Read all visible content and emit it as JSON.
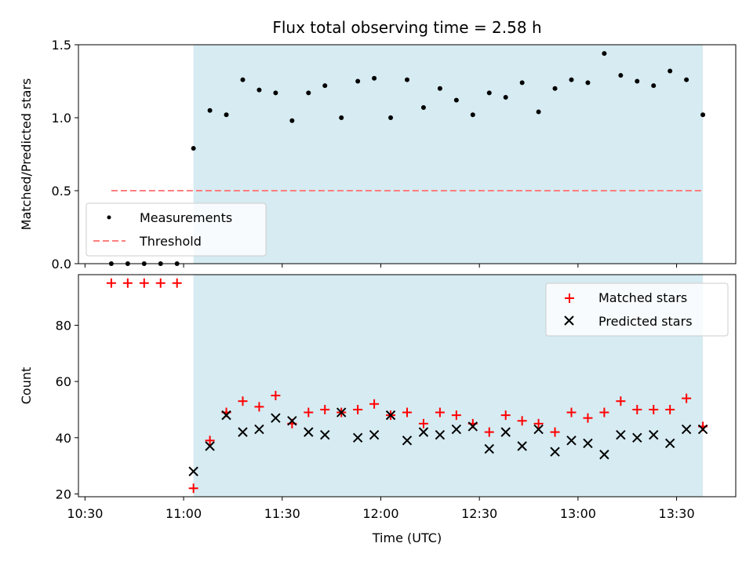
{
  "chart_data": {
    "type": "scatter",
    "title": "Flux total observing time = 2.58 h",
    "xlabel": "Time (UTC)",
    "x_ticks": [
      "10:30",
      "11:00",
      "11:30",
      "12:00",
      "12:30",
      "13:00",
      "13:30"
    ],
    "x_range": [
      "10:28",
      "13:48"
    ],
    "highlight_span": {
      "start": "11:03",
      "end": "13:38",
      "color": "#add8e6"
    },
    "panels": [
      {
        "ylabel": "Matched/Predicted stars",
        "ylim": [
          0,
          1.5
        ],
        "y_ticks": [
          0.0,
          0.5,
          1.0,
          1.5
        ],
        "legend": {
          "placement": "lower-left",
          "entries": [
            "Measurements",
            "Threshold"
          ]
        },
        "series": [
          {
            "name": "Measurements",
            "marker": "dot",
            "color": "#000000",
            "x": [
              "10:38",
              "10:43",
              "10:48",
              "10:53",
              "10:58",
              "11:03",
              "11:08",
              "11:13",
              "11:18",
              "11:23",
              "11:28",
              "11:33",
              "11:38",
              "11:43",
              "11:48",
              "11:53",
              "11:58",
              "12:03",
              "12:08",
              "12:13",
              "12:18",
              "12:23",
              "12:28",
              "12:33",
              "12:38",
              "12:43",
              "12:48",
              "12:53",
              "12:58",
              "13:03",
              "13:08",
              "13:13",
              "13:18",
              "13:23",
              "13:28",
              "13:33",
              "13:38"
            ],
            "y": [
              0,
              0,
              0,
              0,
              0,
              0.79,
              1.05,
              1.02,
              1.26,
              1.19,
              1.17,
              0.98,
              1.17,
              1.22,
              1.0,
              1.25,
              1.27,
              1.0,
              1.26,
              1.07,
              1.2,
              1.12,
              1.02,
              1.17,
              1.14,
              1.24,
              1.04,
              1.2,
              1.26,
              1.24,
              1.44,
              1.29,
              1.25,
              1.22,
              1.32,
              1.26,
              1.02
            ]
          },
          {
            "name": "Threshold",
            "marker": "dashed-line",
            "color": "#ff7f7f",
            "x": [
              "10:38",
              "13:38"
            ],
            "y": [
              0.5,
              0.5
            ]
          }
        ]
      },
      {
        "ylabel": "Count",
        "ylim": [
          19,
          98
        ],
        "y_ticks": [
          20,
          40,
          60,
          80
        ],
        "legend": {
          "placement": "upper-right",
          "entries": [
            "Matched stars",
            "Predicted stars"
          ]
        },
        "series": [
          {
            "name": "Matched stars",
            "marker": "plus",
            "color": "#ff0000",
            "x": [
              "10:38",
              "10:43",
              "10:48",
              "10:53",
              "10:58",
              "11:03",
              "11:08",
              "11:13",
              "11:18",
              "11:23",
              "11:28",
              "11:33",
              "11:38",
              "11:43",
              "11:48",
              "11:53",
              "11:58",
              "12:03",
              "12:08",
              "12:13",
              "12:18",
              "12:23",
              "12:28",
              "12:33",
              "12:38",
              "12:43",
              "12:48",
              "12:53",
              "12:58",
              "13:03",
              "13:08",
              "13:13",
              "13:18",
              "13:23",
              "13:28",
              "13:33",
              "13:38"
            ],
            "y": [
              95,
              95,
              95,
              95,
              95,
              22,
              39,
              49,
              53,
              51,
              55,
              45,
              49,
              50,
              49,
              50,
              52,
              48,
              49,
              45,
              49,
              48,
              45,
              42,
              48,
              46,
              45,
              42,
              49,
              47,
              49,
              53,
              50,
              50,
              50,
              54,
              44
            ]
          },
          {
            "name": "Predicted stars",
            "marker": "x",
            "color": "#000000",
            "x": [
              "11:03",
              "11:08",
              "11:13",
              "11:18",
              "11:23",
              "11:28",
              "11:33",
              "11:38",
              "11:43",
              "11:48",
              "11:53",
              "11:58",
              "12:03",
              "12:08",
              "12:13",
              "12:18",
              "12:23",
              "12:28",
              "12:33",
              "12:38",
              "12:43",
              "12:48",
              "12:53",
              "12:58",
              "13:03",
              "13:08",
              "13:13",
              "13:18",
              "13:23",
              "13:28",
              "13:33",
              "13:38"
            ],
            "y": [
              28,
              37,
              48,
              42,
              43,
              47,
              46,
              42,
              41,
              49,
              40,
              41,
              48,
              39,
              42,
              41,
              43,
              44,
              36,
              42,
              37,
              43,
              35,
              39,
              38,
              34,
              41,
              40,
              41,
              38,
              43,
              43
            ]
          }
        ]
      }
    ]
  }
}
